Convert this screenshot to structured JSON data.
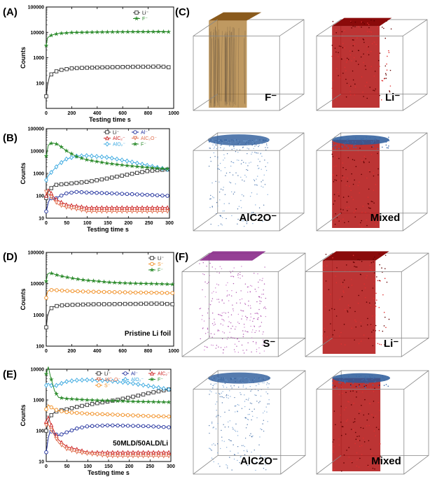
{
  "panels": {
    "A": {
      "label": "(A)"
    },
    "B": {
      "label": "(B)"
    },
    "C": {
      "label": "(C)"
    },
    "D": {
      "label": "(D)"
    },
    "E": {
      "label": "(E)"
    },
    "F": {
      "label": "(F)"
    }
  },
  "chart_data": [
    {
      "id": "A",
      "type": "line",
      "xlabel": "Testing time s",
      "ylabel": "Counts",
      "xlim": [
        0,
        1000
      ],
      "ylim": [
        10,
        100000
      ],
      "yscale": "log",
      "xticks": [
        "0",
        "200",
        "400",
        "600",
        "800",
        "1000"
      ],
      "yticks": [
        "100",
        "1000",
        "10000",
        "100000"
      ],
      "series": [
        {
          "name": "Li⁻",
          "color": "#333333",
          "marker": "square-open",
          "x": [
            0,
            10,
            25,
            50,
            100,
            200,
            300,
            400,
            500,
            600,
            700,
            800,
            900,
            960
          ],
          "y": [
            30,
            80,
            180,
            250,
            320,
            380,
            400,
            410,
            420,
            430,
            440,
            440,
            450,
            420
          ]
        },
        {
          "name": "F⁻",
          "color": "#2a8a2a",
          "marker": "star",
          "x": [
            0,
            10,
            25,
            50,
            100,
            200,
            300,
            400,
            500,
            600,
            700,
            800,
            900,
            960
          ],
          "y": [
            3000,
            6000,
            7000,
            8000,
            9000,
            9800,
            10000,
            10200,
            10300,
            10400,
            10500,
            10500,
            10600,
            10400
          ]
        }
      ]
    },
    {
      "id": "B",
      "type": "line",
      "xlabel": "Testing time s",
      "ylabel": "Counts",
      "xlim": [
        0,
        300
      ],
      "ylim": [
        10,
        100000
      ],
      "yscale": "log",
      "xticks": [
        "0",
        "50",
        "100",
        "150",
        "200",
        "250",
        "300"
      ],
      "yticks": [
        "10",
        "100",
        "1000",
        "10000",
        "100000"
      ],
      "series": [
        {
          "name": "Li⁻",
          "color": "#333333",
          "marker": "square-open",
          "x": [
            0,
            5,
            10,
            20,
            30,
            50,
            75,
            100,
            150,
            200,
            250,
            295
          ],
          "y": [
            80,
            150,
            200,
            300,
            320,
            340,
            380,
            420,
            600,
            900,
            1300,
            1500
          ]
        },
        {
          "name": "Al⁻",
          "color": "#1a2a9a",
          "marker": "circle-open",
          "x": [
            0,
            5,
            10,
            20,
            30,
            50,
            75,
            100,
            150,
            200,
            250,
            295
          ],
          "y": [
            20,
            50,
            80,
            70,
            90,
            130,
            150,
            140,
            130,
            120,
            110,
            100
          ]
        },
        {
          "name": "AlC₂⁻",
          "color": "#cc2222",
          "marker": "triangle-up-open",
          "x": [
            0,
            5,
            10,
            20,
            30,
            50,
            75,
            100,
            150,
            200,
            250,
            295
          ],
          "y": [
            100,
            200,
            150,
            80,
            60,
            40,
            35,
            30,
            30,
            30,
            30,
            30
          ]
        },
        {
          "name": "AlC₂O⁻",
          "color": "#e07050",
          "marker": "triangle-down-open",
          "x": [
            0,
            5,
            10,
            20,
            30,
            50,
            75,
            100,
            150,
            200,
            250,
            295
          ],
          "y": [
            150,
            120,
            100,
            60,
            40,
            30,
            25,
            20,
            20,
            20,
            20,
            20
          ]
        },
        {
          "name": "AlO₂⁻",
          "color": "#38a8e0",
          "marker": "diamond-open",
          "x": [
            0,
            5,
            10,
            20,
            30,
            50,
            75,
            100,
            150,
            200,
            250,
            295
          ],
          "y": [
            500,
            800,
            1000,
            1600,
            2500,
            4500,
            6000,
            6200,
            5200,
            3500,
            2200,
            1500
          ]
        },
        {
          "name": "F⁻",
          "color": "#2a8a2a",
          "marker": "star",
          "x": [
            0,
            5,
            10,
            20,
            30,
            50,
            75,
            100,
            150,
            200,
            250,
            295
          ],
          "y": [
            6000,
            18000,
            22000,
            22000,
            19000,
            10000,
            5500,
            4000,
            2800,
            2200,
            1800,
            1600
          ]
        }
      ]
    },
    {
      "id": "D",
      "type": "line",
      "xlabel": "",
      "ylabel": "Counts",
      "xlim": [
        0,
        1000
      ],
      "ylim": [
        100,
        100000
      ],
      "yscale": "log",
      "xticks": [
        "0",
        "200",
        "400",
        "600",
        "800",
        "1000"
      ],
      "yticks": [
        "100",
        "1000",
        "10000",
        "100000"
      ],
      "annotation": "Pristine Li foil",
      "series": [
        {
          "name": "Li⁻",
          "color": "#333333",
          "marker": "square-open",
          "x": [
            0,
            10,
            25,
            50,
            100,
            200,
            300,
            400,
            500,
            600,
            700,
            800,
            900,
            990
          ],
          "y": [
            400,
            900,
            1400,
            1800,
            2000,
            2100,
            2150,
            2200,
            2200,
            2250,
            2250,
            2300,
            2300,
            2200
          ]
        },
        {
          "name": "S⁻",
          "color": "#f08a1a",
          "marker": "circle-open",
          "x": [
            0,
            10,
            25,
            50,
            100,
            200,
            300,
            400,
            500,
            600,
            700,
            800,
            900,
            990
          ],
          "y": [
            3500,
            5500,
            6200,
            6300,
            6100,
            5800,
            5600,
            5500,
            5400,
            5300,
            5200,
            5200,
            5100,
            5000
          ]
        },
        {
          "name": "F⁻",
          "color": "#2a8a2a",
          "marker": "star",
          "x": [
            0,
            10,
            25,
            50,
            100,
            200,
            300,
            400,
            500,
            600,
            700,
            800,
            900,
            990
          ],
          "y": [
            12000,
            20000,
            22000,
            21000,
            18000,
            15000,
            13000,
            12000,
            11000,
            10500,
            10200,
            10000,
            9800,
            9500
          ]
        }
      ]
    },
    {
      "id": "E",
      "type": "line",
      "xlabel": "Testing time s",
      "ylabel": "Counts",
      "xlim": [
        0,
        300
      ],
      "ylim": [
        10,
        10000
      ],
      "yscale": "log",
      "xticks": [
        "0",
        "50",
        "100",
        "150",
        "200",
        "250",
        "300"
      ],
      "yticks": [
        "10",
        "100",
        "1000",
        "10000"
      ],
      "annotation": "50MLD/50ALD/Li",
      "series": [
        {
          "name": "Li⁻",
          "color": "#333333",
          "marker": "square-open",
          "x": [
            0,
            5,
            10,
            20,
            30,
            50,
            75,
            100,
            150,
            200,
            250,
            295
          ],
          "y": [
            100,
            200,
            300,
            400,
            450,
            500,
            600,
            700,
            900,
            1200,
            1700,
            2200
          ]
        },
        {
          "name": "Al⁻",
          "color": "#1a2a9a",
          "marker": "circle-open",
          "x": [
            0,
            5,
            10,
            20,
            30,
            50,
            75,
            100,
            150,
            200,
            250,
            295
          ],
          "y": [
            20,
            60,
            100,
            80,
            70,
            90,
            120,
            140,
            150,
            145,
            140,
            130
          ]
        },
        {
          "name": "AlC₂⁻",
          "color": "#cc2222",
          "marker": "triangle-up-open",
          "x": [
            0,
            5,
            10,
            20,
            30,
            50,
            75,
            100,
            150,
            200,
            250,
            295
          ],
          "y": [
            200,
            300,
            180,
            90,
            50,
            30,
            25,
            20,
            20,
            20,
            20,
            20
          ]
        },
        {
          "name": "AlC₂O⁻",
          "color": "#e07050",
          "marker": "triangle-down-open",
          "x": [
            0,
            5,
            10,
            20,
            30,
            50,
            75,
            100,
            150,
            200,
            250,
            295
          ],
          "y": [
            150,
            160,
            120,
            70,
            40,
            25,
            20,
            18,
            15,
            15,
            15,
            15
          ]
        },
        {
          "name": "AlO₂⁻",
          "color": "#38a8e0",
          "marker": "diamond-open",
          "x": [
            0,
            5,
            10,
            20,
            30,
            50,
            75,
            100,
            150,
            200,
            250,
            295
          ],
          "y": [
            3000,
            3500,
            3000,
            2800,
            3200,
            4000,
            4400,
            4500,
            4200,
            3600,
            2800,
            2200
          ]
        },
        {
          "name": "F⁻",
          "color": "#2a8a2a",
          "marker": "star",
          "x": [
            0,
            5,
            10,
            20,
            30,
            50,
            75,
            100,
            150,
            200,
            250,
            295
          ],
          "y": [
            7000,
            12000,
            6000,
            2000,
            1200,
            1100,
            1050,
            1000,
            950,
            900,
            870,
            850
          ]
        },
        {
          "name": "S⁻",
          "color": "#f08a1a",
          "marker": "circle-open",
          "x": [
            0,
            5,
            10,
            20,
            30,
            50,
            75,
            100,
            150,
            200,
            250,
            295
          ],
          "y": [
            500,
            700,
            600,
            500,
            450,
            400,
            380,
            360,
            340,
            320,
            300,
            290
          ]
        }
      ]
    }
  ],
  "renders": {
    "C": [
      {
        "label": "F⁻"
      },
      {
        "label": "Li⁻"
      },
      {
        "label": "AlC2O⁻"
      },
      {
        "label": "Mixed"
      }
    ],
    "F": [
      {
        "label": "S⁻"
      },
      {
        "label": "Li⁻"
      },
      {
        "label": "AlC2O⁻"
      },
      {
        "label": "Mixed"
      }
    ]
  }
}
